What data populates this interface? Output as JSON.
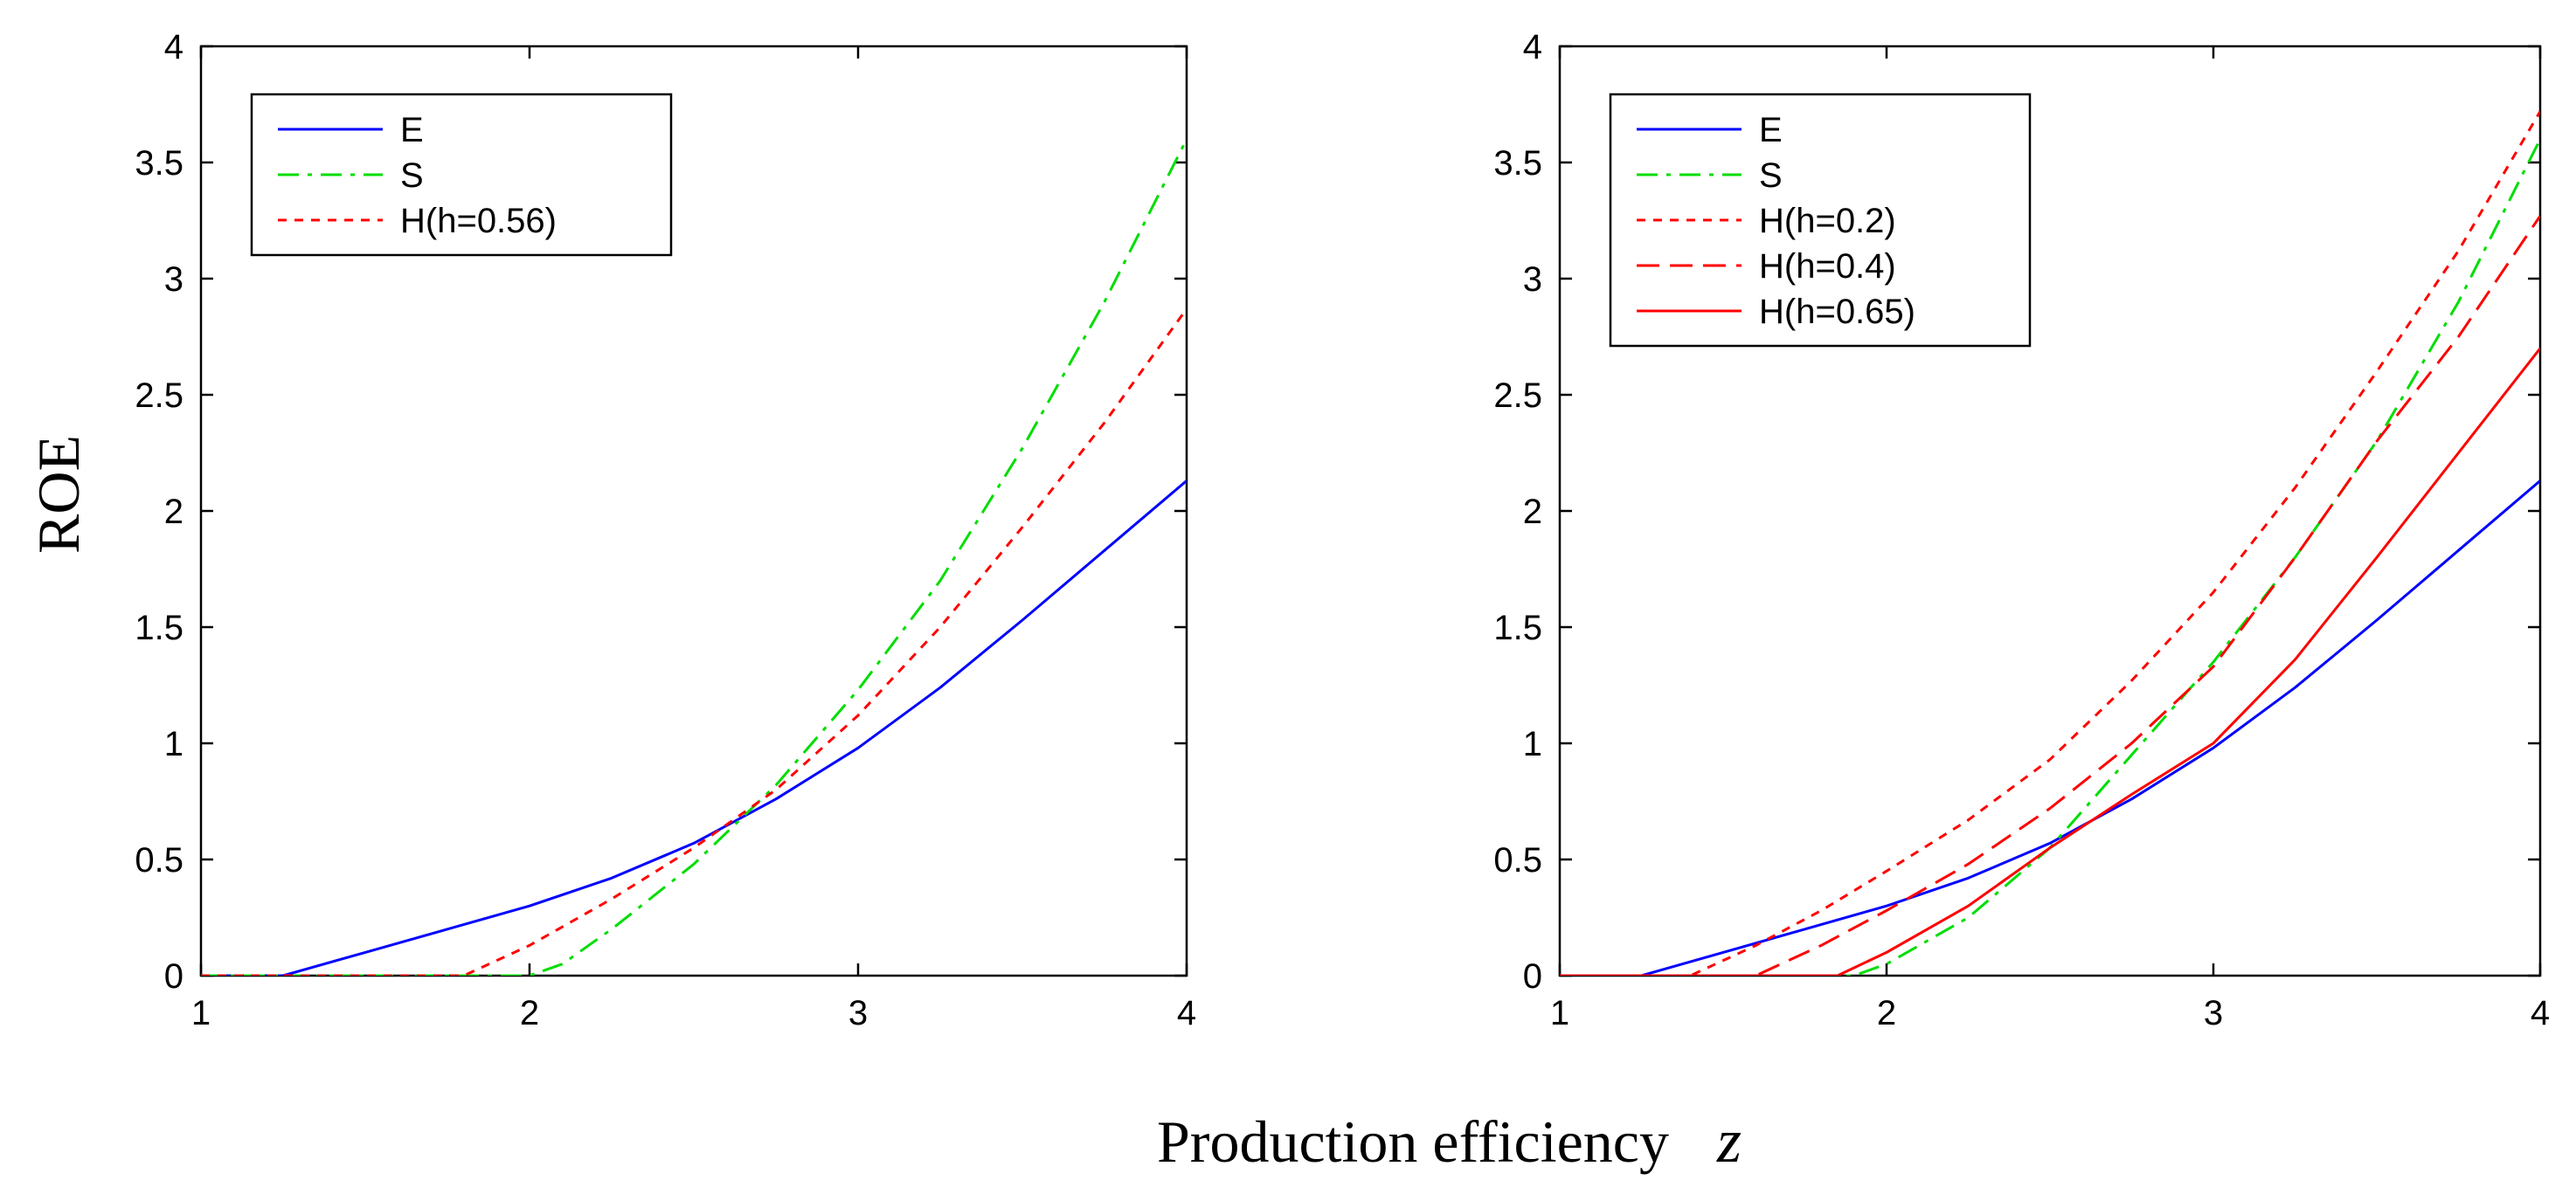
{
  "figure": {
    "ylabel": "ROE",
    "xlabel": "Production efficiency",
    "xlabel_var": "z"
  },
  "chart_data": [
    {
      "type": "line",
      "panel": "left",
      "title": "",
      "xlabel": "Production efficiency z",
      "ylabel": "ROE",
      "xlim": [
        1,
        4
      ],
      "ylim": [
        0,
        4
      ],
      "xticks": [
        1,
        2,
        3,
        4
      ],
      "xtick_labels": [
        "1",
        "2",
        "3",
        "4"
      ],
      "yticks": [
        0,
        0.5,
        1,
        1.5,
        2,
        2.5,
        3,
        3.5,
        4
      ],
      "ytick_labels": [
        "0",
        "0.5",
        "1",
        "1.5",
        "2",
        "2.5",
        "3",
        "3.5",
        "4"
      ],
      "grid": false,
      "legend_position": "top-left",
      "series": [
        {
          "name": "E",
          "color": "#0000ff",
          "dash": "solid",
          "x": [
            1.0,
            1.25,
            1.5,
            1.75,
            2.0,
            2.25,
            2.5,
            2.75,
            3.0,
            3.25,
            3.5,
            3.75,
            4.0
          ],
          "y": [
            0.0,
            0.0,
            0.1,
            0.2,
            0.3,
            0.42,
            0.57,
            0.76,
            0.98,
            1.24,
            1.53,
            1.83,
            2.13
          ]
        },
        {
          "name": "S",
          "color": "#00dd00",
          "dash": "dashdot",
          "x": [
            1.0,
            2.0,
            2.1,
            2.25,
            2.5,
            2.75,
            3.0,
            3.25,
            3.5,
            3.75,
            4.0
          ],
          "y": [
            0.0,
            0.0,
            0.05,
            0.2,
            0.48,
            0.82,
            1.23,
            1.7,
            2.27,
            2.9,
            3.6
          ]
        },
        {
          "name": "H(h=0.56)",
          "color": "#ff0000",
          "dash": "dotted",
          "x": [
            1.0,
            1.8,
            2.0,
            2.25,
            2.5,
            2.75,
            3.0,
            3.25,
            3.5,
            3.75,
            4.0
          ],
          "y": [
            0.0,
            0.0,
            0.13,
            0.33,
            0.55,
            0.8,
            1.12,
            1.5,
            1.93,
            2.38,
            2.87
          ]
        }
      ]
    },
    {
      "type": "line",
      "panel": "right",
      "title": "",
      "xlabel": "Production efficiency z",
      "ylabel": "",
      "xlim": [
        1,
        4
      ],
      "ylim": [
        0,
        4
      ],
      "xticks": [
        1,
        2,
        3,
        4
      ],
      "xtick_labels": [
        "1",
        "2",
        "3",
        "4"
      ],
      "yticks": [
        0,
        0.5,
        1,
        1.5,
        2,
        2.5,
        3,
        3.5,
        4
      ],
      "ytick_labels": [
        "0",
        "0.5",
        "1",
        "1.5",
        "2",
        "2.5",
        "3",
        "3.5",
        "4"
      ],
      "grid": false,
      "legend_position": "top-left",
      "series": [
        {
          "name": "E",
          "color": "#0000ff",
          "dash": "solid",
          "x": [
            1.0,
            1.25,
            1.5,
            1.75,
            2.0,
            2.25,
            2.5,
            2.75,
            3.0,
            3.25,
            3.5,
            3.75,
            4.0
          ],
          "y": [
            0.0,
            0.0,
            0.1,
            0.2,
            0.3,
            0.42,
            0.57,
            0.76,
            0.98,
            1.24,
            1.53,
            1.83,
            2.13
          ]
        },
        {
          "name": "S",
          "color": "#00dd00",
          "dash": "dashdot",
          "x": [
            1.0,
            1.9,
            2.0,
            2.25,
            2.5,
            2.75,
            3.0,
            3.25,
            3.5,
            3.75,
            4.0
          ],
          "y": [
            0.0,
            0.0,
            0.05,
            0.25,
            0.55,
            0.95,
            1.35,
            1.8,
            2.3,
            2.9,
            3.6
          ]
        },
        {
          "name": "H(h=0.2)",
          "color": "#ff0000",
          "dash": "dotted",
          "x": [
            1.0,
            1.4,
            1.6,
            1.8,
            2.0,
            2.25,
            2.5,
            2.75,
            3.0,
            3.25,
            3.5,
            3.75,
            4.0
          ],
          "y": [
            0.0,
            0.0,
            0.13,
            0.28,
            0.45,
            0.67,
            0.93,
            1.27,
            1.65,
            2.1,
            2.6,
            3.12,
            3.72
          ]
        },
        {
          "name": "H(h=0.4)",
          "color": "#ff0000",
          "dash": "dashed",
          "x": [
            1.0,
            1.6,
            1.8,
            2.0,
            2.25,
            2.5,
            2.75,
            3.0,
            3.25,
            3.5,
            3.75,
            4.0
          ],
          "y": [
            0.0,
            0.0,
            0.13,
            0.28,
            0.48,
            0.72,
            1.0,
            1.33,
            1.8,
            2.3,
            2.75,
            3.27
          ]
        },
        {
          "name": "H(h=0.65)",
          "color": "#ff0000",
          "dash": "solid",
          "x": [
            1.0,
            1.85,
            2.0,
            2.25,
            2.5,
            2.75,
            3.0,
            3.25,
            3.5,
            3.75,
            4.0
          ],
          "y": [
            0.0,
            0.0,
            0.1,
            0.3,
            0.55,
            0.78,
            1.0,
            1.36,
            1.8,
            2.25,
            2.7
          ]
        }
      ]
    }
  ]
}
